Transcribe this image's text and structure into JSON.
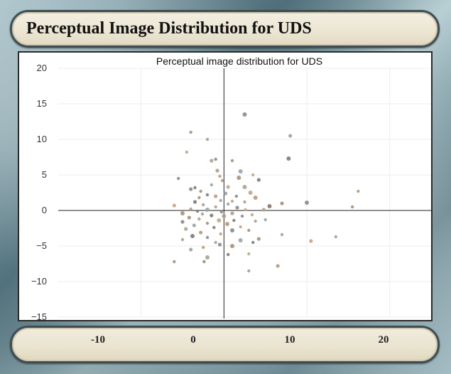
{
  "window": {
    "title": "Perceptual Image Distribution for UDS"
  },
  "colors": {
    "axis": "#222222",
    "grid": "#eeeeee",
    "frame_accent": "#6e8f99",
    "point_palette": [
      "#8a8a8a",
      "#a6907a",
      "#b89a80",
      "#9aa3a6",
      "#c2a58a",
      "#7d7a78",
      "#b0a08e"
    ]
  },
  "chart_data": {
    "type": "scatter",
    "title": "Perceptual image distribution for UDS",
    "xlabel": "",
    "ylabel": "",
    "xlim": [
      -20,
      25
    ],
    "ylim": [
      -15,
      20
    ],
    "xticks": [
      -10,
      0,
      10,
      20
    ],
    "yticks": [
      -15,
      -10,
      -5,
      0,
      5,
      10,
      15,
      20
    ],
    "grid": true,
    "legend": "none",
    "points": [
      [
        2.5,
        13.5
      ],
      [
        -4,
        11
      ],
      [
        -2,
        10
      ],
      [
        8,
        10.5
      ],
      [
        -4.5,
        8.2
      ],
      [
        7.8,
        7.3
      ],
      [
        -1.5,
        7
      ],
      [
        -1,
        7.2
      ],
      [
        1,
        7
      ],
      [
        -0.8,
        5.6
      ],
      [
        2,
        5.5
      ],
      [
        3.5,
        5
      ],
      [
        4.2,
        4.3
      ],
      [
        -0.5,
        4.8
      ],
      [
        -5.5,
        4.5
      ],
      [
        1.8,
        4.6
      ],
      [
        -0.2,
        4.2
      ],
      [
        -1.5,
        3.6
      ],
      [
        0.5,
        3.3
      ],
      [
        -3.5,
        3.2
      ],
      [
        2.5,
        3.3
      ],
      [
        -4,
        3
      ],
      [
        -2.8,
        2.7
      ],
      [
        16.2,
        2.7
      ],
      [
        0.2,
        2.4
      ],
      [
        3.2,
        2.5
      ],
      [
        -2,
        2.2
      ],
      [
        -1,
        2
      ],
      [
        1.5,
        2
      ],
      [
        -3,
        1.8
      ],
      [
        3.8,
        1.8
      ],
      [
        -0.4,
        1.4
      ],
      [
        1,
        1.3
      ],
      [
        -3.5,
        1.2
      ],
      [
        2.5,
        1.2
      ],
      [
        10,
        1.1
      ],
      [
        7,
        1
      ],
      [
        -2.5,
        0.8
      ],
      [
        0.5,
        0.9
      ],
      [
        -6,
        0.7
      ],
      [
        5.5,
        0.6
      ],
      [
        -1,
        0.5
      ],
      [
        1.6,
        0.4
      ],
      [
        15.5,
        0.5
      ],
      [
        -4,
        0.2
      ],
      [
        -2,
        0.1
      ],
      [
        2.6,
        0.1
      ],
      [
        -3.2,
        -0.1
      ],
      [
        4.8,
        0.1
      ],
      [
        -0.3,
        -0.2
      ],
      [
        -5,
        -0.4
      ],
      [
        1,
        -0.4
      ],
      [
        -2.6,
        -0.5
      ],
      [
        3.4,
        -0.6
      ],
      [
        -1.5,
        -0.7
      ],
      [
        0,
        -0.8
      ],
      [
        2.2,
        -0.8
      ],
      [
        -4.2,
        -1
      ],
      [
        -3,
        -1.2
      ],
      [
        5,
        -1.3
      ],
      [
        -0.6,
        -1.4
      ],
      [
        1.2,
        -1.4
      ],
      [
        3.8,
        -1.5
      ],
      [
        -5,
        -1.6
      ],
      [
        -2,
        -1.8
      ],
      [
        0.4,
        -1.9
      ],
      [
        -3.6,
        -2.1
      ],
      [
        2,
        -2.3
      ],
      [
        -1.2,
        -2.4
      ],
      [
        -4.6,
        -2.6
      ],
      [
        1,
        -2.8
      ],
      [
        3,
        -2.8
      ],
      [
        -2.8,
        -3.1
      ],
      [
        7,
        -3.4
      ],
      [
        -0.4,
        -3.3
      ],
      [
        -3.8,
        -3.6
      ],
      [
        13.5,
        -3.7
      ],
      [
        -2,
        -3.8
      ],
      [
        4.2,
        -4
      ],
      [
        -5,
        -4.1
      ],
      [
        2,
        -4.2
      ],
      [
        10.5,
        -4.3
      ],
      [
        3.5,
        -4.5
      ],
      [
        -1,
        -4.5
      ],
      [
        -0.5,
        -4.8
      ],
      [
        1,
        -5
      ],
      [
        -2.5,
        -5.2
      ],
      [
        -4,
        -5.5
      ],
      [
        3,
        -6.1
      ],
      [
        0.5,
        -6.2
      ],
      [
        -2,
        -6.6
      ],
      [
        -2.4,
        -7.2
      ],
      [
        -6,
        -7.2
      ],
      [
        6.5,
        -7.8
      ],
      [
        3,
        -8.5
      ]
    ]
  },
  "x_axis_banner": {
    "ticks": [
      "-10",
      "0",
      "10",
      "20"
    ]
  }
}
